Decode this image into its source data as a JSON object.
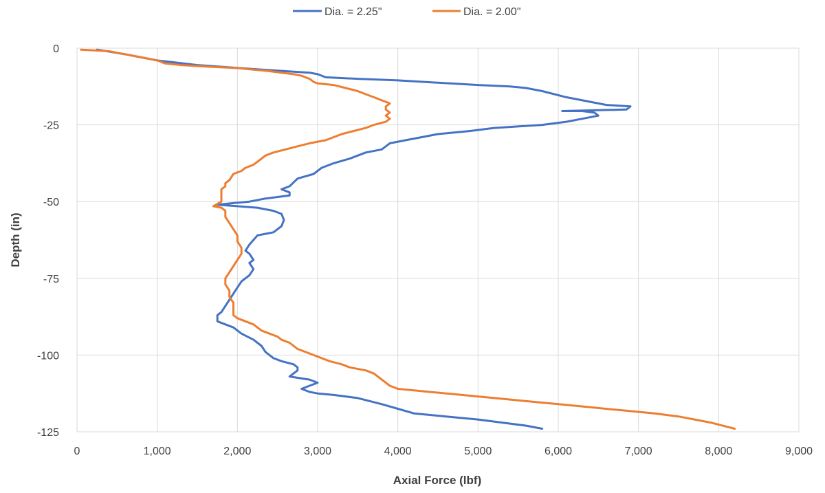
{
  "chart_data": {
    "type": "line",
    "title": "",
    "xlabel": "Axial Force (lbf)",
    "ylabel": "Depth (in)",
    "xlim": [
      0,
      9000
    ],
    "ylim": [
      -125,
      0
    ],
    "x_ticks": [
      0,
      1000,
      2000,
      3000,
      4000,
      5000,
      6000,
      7000,
      8000,
      9000
    ],
    "x_tick_labels": [
      "0",
      "1,000",
      "2,000",
      "3,000",
      "4,000",
      "5,000",
      "6,000",
      "7,000",
      "8,000",
      "9,000"
    ],
    "y_ticks": [
      0,
      -25,
      -50,
      -75,
      -100,
      -125
    ],
    "y_tick_labels": [
      "0",
      "-25",
      "-50",
      "-75",
      "-100",
      "-125"
    ],
    "grid": true,
    "legend_position": "top-center",
    "series": [
      {
        "name": "Dia. = 2.25\"",
        "color": "#4472C4",
        "points": [
          [
            250,
            -0.5
          ],
          [
            600,
            -2
          ],
          [
            1000,
            -4
          ],
          [
            1500,
            -5.5
          ],
          [
            2300,
            -7
          ],
          [
            2900,
            -8
          ],
          [
            3000,
            -8.5
          ],
          [
            3100,
            -9.5
          ],
          [
            3500,
            -10
          ],
          [
            4000,
            -10.5
          ],
          [
            5000,
            -12
          ],
          [
            5400,
            -12.5
          ],
          [
            5600,
            -13
          ],
          [
            5800,
            -14
          ],
          [
            6100,
            -16
          ],
          [
            6400,
            -17.5
          ],
          [
            6600,
            -18.5
          ],
          [
            6900,
            -19
          ],
          [
            6850,
            -20
          ],
          [
            6050,
            -20.5
          ],
          [
            6300,
            -20.5
          ],
          [
            6450,
            -21
          ],
          [
            6500,
            -22
          ],
          [
            6300,
            -23
          ],
          [
            6100,
            -24
          ],
          [
            5800,
            -25
          ],
          [
            5200,
            -26
          ],
          [
            4900,
            -27
          ],
          [
            4500,
            -28
          ],
          [
            4100,
            -30
          ],
          [
            3900,
            -31
          ],
          [
            3800,
            -33
          ],
          [
            3600,
            -34
          ],
          [
            3400,
            -36
          ],
          [
            3200,
            -37.5
          ],
          [
            3050,
            -39
          ],
          [
            2950,
            -41
          ],
          [
            2750,
            -42.5
          ],
          [
            2650,
            -45
          ],
          [
            2550,
            -46
          ],
          [
            2650,
            -47
          ],
          [
            2650,
            -48
          ],
          [
            2350,
            -49
          ],
          [
            2150,
            -50
          ],
          [
            1950,
            -50.5
          ],
          [
            1750,
            -51
          ],
          [
            2000,
            -51.5
          ],
          [
            2250,
            -52
          ],
          [
            2450,
            -53
          ],
          [
            2550,
            -54
          ],
          [
            2580,
            -56
          ],
          [
            2550,
            -58
          ],
          [
            2450,
            -60
          ],
          [
            2250,
            -61
          ],
          [
            2200,
            -62.5
          ],
          [
            2150,
            -64
          ],
          [
            2100,
            -66
          ],
          [
            2150,
            -67
          ],
          [
            2200,
            -69
          ],
          [
            2150,
            -70
          ],
          [
            2200,
            -72
          ],
          [
            2150,
            -74
          ],
          [
            2050,
            -76
          ],
          [
            2000,
            -78
          ],
          [
            1950,
            -80
          ],
          [
            1900,
            -82
          ],
          [
            1850,
            -84
          ],
          [
            1800,
            -86
          ],
          [
            1750,
            -87
          ],
          [
            1750,
            -89
          ],
          [
            1850,
            -90
          ],
          [
            1950,
            -91
          ],
          [
            2050,
            -93
          ],
          [
            2200,
            -95
          ],
          [
            2300,
            -97
          ],
          [
            2350,
            -99
          ],
          [
            2450,
            -101
          ],
          [
            2550,
            -102
          ],
          [
            2700,
            -103
          ],
          [
            2750,
            -104
          ],
          [
            2750,
            -105
          ],
          [
            2700,
            -106
          ],
          [
            2650,
            -107
          ],
          [
            2900,
            -108
          ],
          [
            3000,
            -109
          ],
          [
            2900,
            -110
          ],
          [
            2800,
            -111
          ],
          [
            2900,
            -112
          ],
          [
            3000,
            -112.5
          ],
          [
            3200,
            -113
          ],
          [
            3500,
            -114
          ],
          [
            3800,
            -116
          ],
          [
            4000,
            -117.5
          ],
          [
            4200,
            -119
          ],
          [
            4600,
            -120
          ],
          [
            5000,
            -121
          ],
          [
            5300,
            -122
          ],
          [
            5600,
            -123
          ],
          [
            5800,
            -124
          ]
        ]
      },
      {
        "name": "Dia. = 2.00\"",
        "color": "#ED7D31",
        "points": [
          [
            50,
            -0.5
          ],
          [
            400,
            -1
          ],
          [
            700,
            -2.5
          ],
          [
            1000,
            -4
          ],
          [
            1100,
            -5
          ],
          [
            1300,
            -5.5
          ],
          [
            1600,
            -6
          ],
          [
            2000,
            -6.5
          ],
          [
            2200,
            -7
          ],
          [
            2400,
            -7.5
          ],
          [
            2550,
            -8
          ],
          [
            2700,
            -8.5
          ],
          [
            2800,
            -9
          ],
          [
            2900,
            -10
          ],
          [
            2950,
            -11
          ],
          [
            3000,
            -11.5
          ],
          [
            3200,
            -12
          ],
          [
            3350,
            -13
          ],
          [
            3500,
            -14
          ],
          [
            3600,
            -15
          ],
          [
            3700,
            -16
          ],
          [
            3800,
            -17
          ],
          [
            3900,
            -18
          ],
          [
            3850,
            -19
          ],
          [
            3850,
            -20
          ],
          [
            3900,
            -21
          ],
          [
            3850,
            -22
          ],
          [
            3900,
            -23
          ],
          [
            3850,
            -24
          ],
          [
            3700,
            -25
          ],
          [
            3600,
            -26
          ],
          [
            3450,
            -27
          ],
          [
            3300,
            -28
          ],
          [
            3200,
            -29
          ],
          [
            3100,
            -30
          ],
          [
            2900,
            -31
          ],
          [
            2750,
            -32
          ],
          [
            2600,
            -33
          ],
          [
            2450,
            -34
          ],
          [
            2350,
            -35
          ],
          [
            2250,
            -37
          ],
          [
            2200,
            -38
          ],
          [
            2100,
            -39
          ],
          [
            2050,
            -40
          ],
          [
            1950,
            -41
          ],
          [
            1900,
            -43
          ],
          [
            1850,
            -44
          ],
          [
            1850,
            -45
          ],
          [
            1800,
            -46
          ],
          [
            1800,
            -48
          ],
          [
            1800,
            -50
          ],
          [
            1700,
            -51.5
          ],
          [
            1800,
            -52
          ],
          [
            1850,
            -53
          ],
          [
            1850,
            -55
          ],
          [
            1900,
            -57
          ],
          [
            1950,
            -59
          ],
          [
            2000,
            -61
          ],
          [
            2000,
            -63
          ],
          [
            2050,
            -65
          ],
          [
            2050,
            -67
          ],
          [
            2000,
            -69
          ],
          [
            1950,
            -71
          ],
          [
            1900,
            -73
          ],
          [
            1850,
            -75
          ],
          [
            1850,
            -77
          ],
          [
            1900,
            -79
          ],
          [
            1900,
            -81
          ],
          [
            1950,
            -83
          ],
          [
            1950,
            -85
          ],
          [
            1950,
            -87
          ],
          [
            2000,
            -88
          ],
          [
            2100,
            -89
          ],
          [
            2200,
            -90
          ],
          [
            2300,
            -92
          ],
          [
            2400,
            -93
          ],
          [
            2500,
            -94
          ],
          [
            2550,
            -95
          ],
          [
            2650,
            -96
          ],
          [
            2700,
            -97
          ],
          [
            2750,
            -98
          ],
          [
            2850,
            -99
          ],
          [
            2950,
            -100
          ],
          [
            3050,
            -101
          ],
          [
            3150,
            -102
          ],
          [
            3300,
            -103
          ],
          [
            3400,
            -104
          ],
          [
            3600,
            -105
          ],
          [
            3700,
            -106
          ],
          [
            3750,
            -107
          ],
          [
            3800,
            -108
          ],
          [
            3850,
            -109
          ],
          [
            3900,
            -110
          ],
          [
            4000,
            -111
          ],
          [
            4400,
            -112
          ],
          [
            4800,
            -113
          ],
          [
            5200,
            -114
          ],
          [
            5600,
            -115
          ],
          [
            6000,
            -116
          ],
          [
            6400,
            -117
          ],
          [
            6800,
            -118
          ],
          [
            7200,
            -119
          ],
          [
            7500,
            -120
          ],
          [
            7700,
            -121
          ],
          [
            7900,
            -122
          ],
          [
            8050,
            -123
          ],
          [
            8200,
            -124
          ]
        ]
      }
    ]
  }
}
